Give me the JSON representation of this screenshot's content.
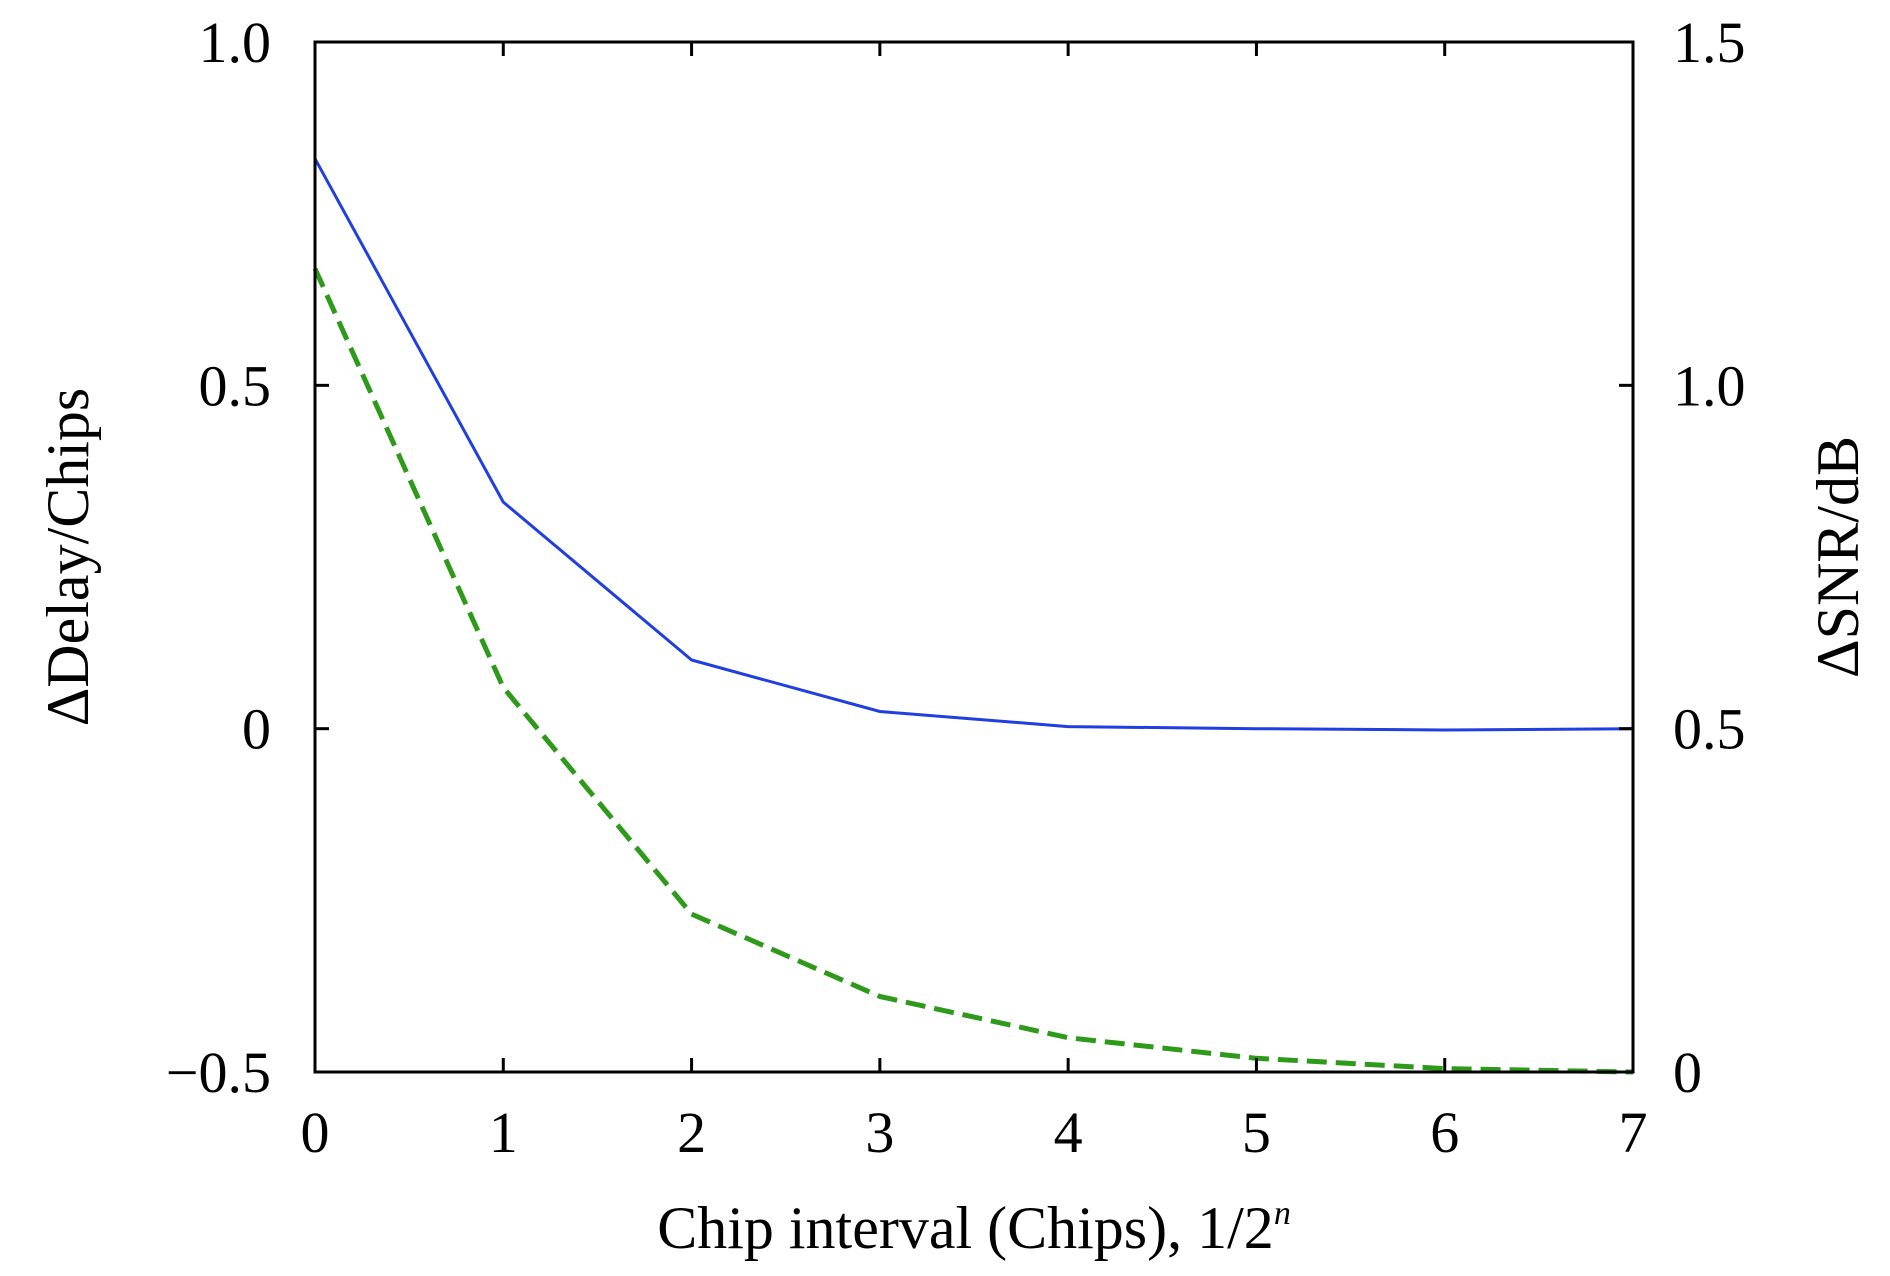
{
  "chart_data": {
    "type": "line",
    "x_label_main": "Chip interval (Chips), 1/2",
    "x_label_sup": "n",
    "y_left_label": "ΔDelay/Chips",
    "y_right_label": "ΔSNR/dB",
    "xlim": [
      0,
      7
    ],
    "y_left_lim": [
      -0.5,
      1.0
    ],
    "y_right_lim": [
      0,
      1.5
    ],
    "x_ticks": [
      0,
      1,
      2,
      3,
      4,
      5,
      6,
      7
    ],
    "x_tick_labels": [
      "0",
      "1",
      "2",
      "3",
      "4",
      "5",
      "6",
      "7"
    ],
    "y_left_ticks": [
      -0.5,
      0,
      0.5,
      1.0
    ],
    "y_left_tick_labels": [
      "−0.5",
      "0",
      "0.5",
      "1.0"
    ],
    "y_right_ticks": [
      0,
      0.5,
      1.0,
      1.5
    ],
    "y_right_tick_labels": [
      "0",
      "0.5",
      "1.0",
      "1.5"
    ],
    "grid": false,
    "series": [
      {
        "axis": "left",
        "color": "#1f3fe0",
        "style": "solid",
        "x": [
          0,
          1,
          2,
          3,
          4,
          5,
          6,
          7
        ],
        "y": [
          0.83,
          0.33,
          0.1,
          0.025,
          0.003,
          0.0,
          -0.002,
          0.0
        ]
      },
      {
        "axis": "right",
        "color": "#2e9a1a",
        "style": "dashed",
        "x": [
          0,
          1,
          2,
          3,
          4,
          5,
          6,
          7
        ],
        "y": [
          1.17,
          0.56,
          0.23,
          0.11,
          0.05,
          0.02,
          0.005,
          0.0
        ]
      }
    ]
  }
}
